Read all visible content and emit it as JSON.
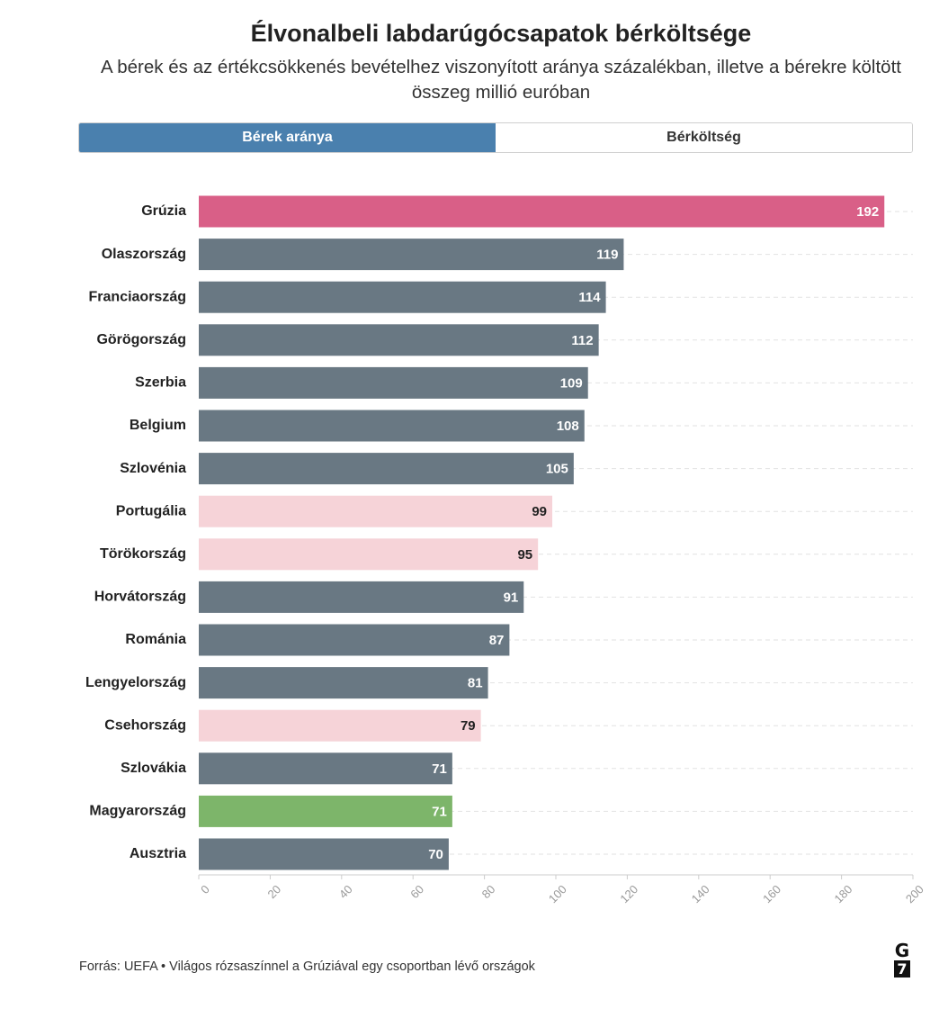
{
  "title": "Élvonalbeli labdarúgócsapatok bérköltsége",
  "subtitle": "A bérek és az értékcsökkenés bevételhez viszonyított aránya százalékban, illetve a bérekre költött összeg millió euróban",
  "tabs": [
    {
      "label": "Bérek aránya",
      "active": true
    },
    {
      "label": "Bérköltség",
      "active": false
    }
  ],
  "chart_data": {
    "type": "bar",
    "orientation": "horizontal",
    "categories": [
      "Grúzia",
      "Olaszország",
      "Franciaország",
      "Görögország",
      "Szerbia",
      "Belgium",
      "Szlovénia",
      "Portugália",
      "Törökország",
      "Horvátország",
      "Románia",
      "Lengyelország",
      "Csehország",
      "Szlovákia",
      "Magyarország",
      "Ausztria"
    ],
    "values": [
      192,
      119,
      114,
      112,
      109,
      108,
      105,
      99,
      95,
      91,
      87,
      81,
      79,
      71,
      71,
      70
    ],
    "groups": [
      "highlight",
      "default",
      "default",
      "default",
      "default",
      "default",
      "default",
      "group",
      "group",
      "default",
      "default",
      "default",
      "group",
      "default",
      "hungary",
      "default"
    ],
    "colors": {
      "highlight": "#d95f87",
      "default": "#697883",
      "group": "#f6d3d8",
      "hungary": "#7db56a"
    },
    "xlim": [
      0,
      200
    ],
    "xticks": [
      0,
      20,
      40,
      60,
      80,
      100,
      120,
      140,
      160,
      180,
      200
    ],
    "grid": true,
    "data_labels": true
  },
  "footer": "Forrás: UEFA • Világos rózsaszínnel a Grúziával egy csoportban lévő országok",
  "logo": {
    "top": "G",
    "bottom": "7"
  }
}
